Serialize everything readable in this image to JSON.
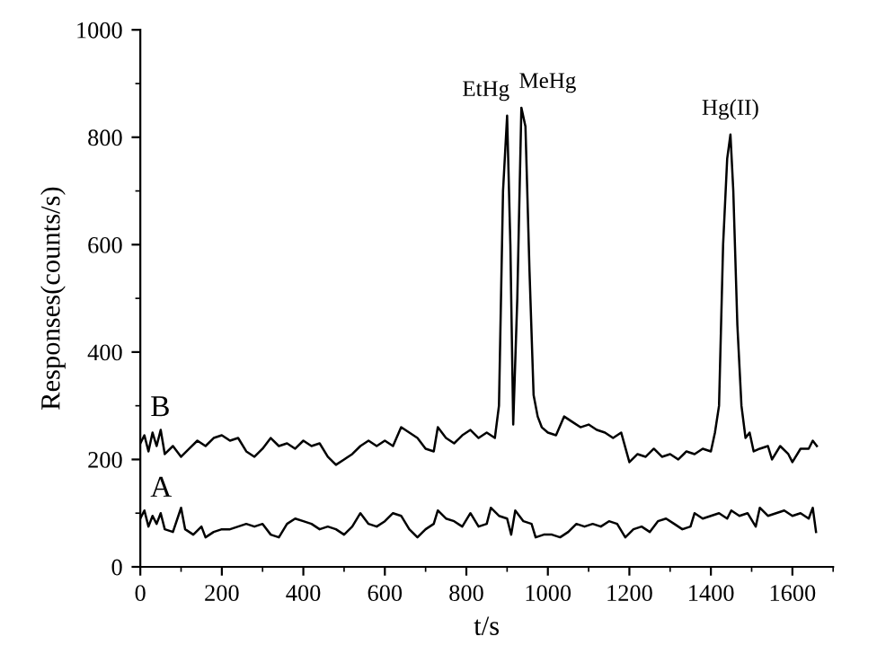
{
  "chart_data": {
    "type": "line",
    "xlabel": "t/s",
    "ylabel": "Responses(counts/s)",
    "xlim": [
      0,
      1700
    ],
    "ylim": [
      0,
      1000
    ],
    "xticks": [
      0,
      200,
      400,
      600,
      800,
      1000,
      1200,
      1400,
      1600
    ],
    "yticks": [
      0,
      200,
      400,
      600,
      800,
      1000
    ],
    "grid": false,
    "legend": false,
    "marker": "none",
    "line_style": "solid",
    "annotations": [
      {
        "text": "EtHg",
        "x": 900,
        "y": 840
      },
      {
        "text": "MeHg",
        "x": 935,
        "y": 855
      },
      {
        "text": "Hg(II)",
        "x": 1448,
        "y": 805
      }
    ],
    "series": [
      {
        "name": "B",
        "color": "#000000",
        "x": [
          0,
          10,
          20,
          30,
          40,
          50,
          60,
          80,
          100,
          120,
          140,
          160,
          180,
          200,
          220,
          240,
          260,
          280,
          300,
          320,
          340,
          360,
          380,
          400,
          420,
          440,
          460,
          480,
          500,
          520,
          540,
          560,
          580,
          600,
          620,
          640,
          660,
          680,
          700,
          720,
          730,
          750,
          770,
          790,
          810,
          830,
          850,
          870,
          880,
          890,
          900,
          908,
          915,
          925,
          935,
          945,
          955,
          965,
          975,
          985,
          1000,
          1020,
          1040,
          1060,
          1080,
          1100,
          1120,
          1140,
          1160,
          1180,
          1200,
          1220,
          1240,
          1260,
          1280,
          1300,
          1320,
          1340,
          1360,
          1380,
          1400,
          1410,
          1420,
          1430,
          1440,
          1448,
          1455,
          1465,
          1475,
          1485,
          1495,
          1505,
          1520,
          1540,
          1550,
          1570,
          1590,
          1600,
          1620,
          1640,
          1650,
          1660
        ],
        "values": [
          230,
          245,
          215,
          250,
          225,
          255,
          210,
          225,
          205,
          220,
          235,
          225,
          240,
          245,
          235,
          240,
          215,
          205,
          220,
          240,
          225,
          230,
          220,
          235,
          225,
          230,
          205,
          190,
          200,
          210,
          225,
          235,
          225,
          235,
          225,
          260,
          250,
          240,
          220,
          215,
          260,
          240,
          230,
          245,
          255,
          240,
          250,
          240,
          300,
          700,
          840,
          600,
          265,
          500,
          855,
          820,
          550,
          320,
          280,
          260,
          250,
          245,
          280,
          270,
          260,
          265,
          255,
          250,
          240,
          250,
          195,
          210,
          205,
          220,
          205,
          210,
          200,
          215,
          210,
          220,
          215,
          250,
          300,
          600,
          760,
          805,
          700,
          450,
          300,
          240,
          250,
          215,
          220,
          225,
          200,
          225,
          210,
          195,
          220,
          220,
          235,
          225
        ]
      },
      {
        "name": "A",
        "color": "#000000",
        "x": [
          0,
          10,
          20,
          30,
          40,
          50,
          60,
          80,
          100,
          110,
          130,
          150,
          160,
          180,
          200,
          220,
          240,
          260,
          280,
          300,
          320,
          340,
          360,
          380,
          400,
          420,
          440,
          460,
          480,
          500,
          520,
          540,
          560,
          580,
          600,
          620,
          640,
          660,
          680,
          700,
          720,
          730,
          750,
          770,
          790,
          810,
          830,
          850,
          860,
          880,
          900,
          910,
          920,
          940,
          960,
          970,
          990,
          1010,
          1030,
          1050,
          1070,
          1090,
          1110,
          1130,
          1150,
          1170,
          1190,
          1210,
          1230,
          1250,
          1270,
          1290,
          1310,
          1330,
          1350,
          1360,
          1380,
          1400,
          1420,
          1440,
          1450,
          1470,
          1490,
          1510,
          1520,
          1540,
          1560,
          1580,
          1600,
          1620,
          1640,
          1650,
          1658
        ],
        "values": [
          90,
          105,
          75,
          95,
          80,
          100,
          70,
          65,
          110,
          70,
          60,
          75,
          55,
          65,
          70,
          70,
          75,
          80,
          75,
          80,
          60,
          55,
          80,
          90,
          85,
          80,
          70,
          75,
          70,
          60,
          75,
          100,
          80,
          75,
          85,
          100,
          95,
          70,
          55,
          70,
          80,
          105,
          90,
          85,
          75,
          100,
          75,
          80,
          110,
          95,
          90,
          60,
          105,
          85,
          80,
          55,
          60,
          60,
          55,
          65,
          80,
          75,
          80,
          75,
          85,
          80,
          55,
          70,
          75,
          65,
          85,
          90,
          80,
          70,
          75,
          100,
          90,
          95,
          100,
          90,
          105,
          95,
          100,
          75,
          110,
          95,
          100,
          105,
          95,
          100,
          90,
          110,
          65
        ]
      }
    ]
  }
}
